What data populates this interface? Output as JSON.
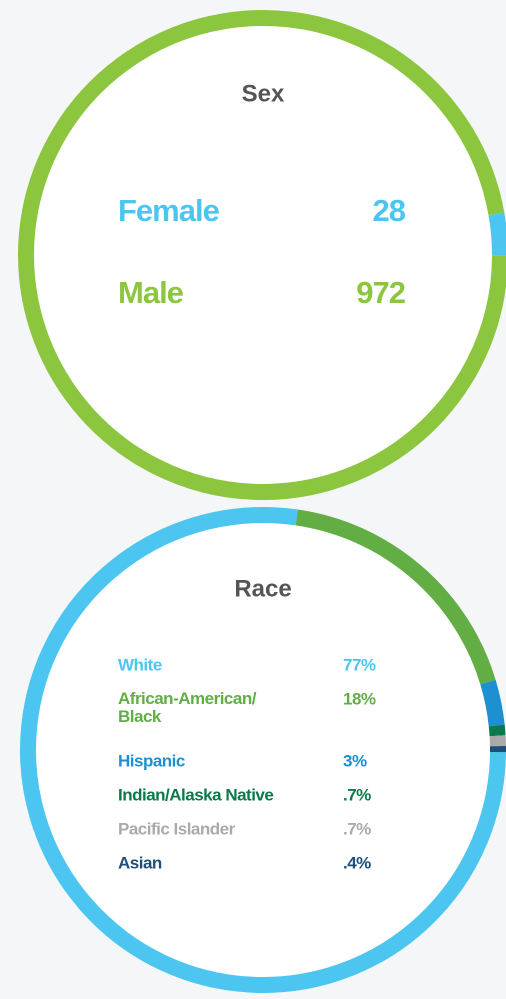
{
  "chart_data": [
    {
      "type": "donut",
      "title": "Sex",
      "categories": [
        "Female",
        "Male"
      ],
      "values": [
        28,
        972
      ],
      "colors": [
        "#4cc6f0",
        "#8cc63f"
      ]
    },
    {
      "type": "donut",
      "title": "Race",
      "categories": [
        "White",
        "African-American/\nBlack",
        "Hispanic",
        "Indian/Alaska Native",
        "Pacific Islander",
        "Asian"
      ],
      "values": [
        77,
        18,
        3,
        0.7,
        0.7,
        0.4
      ],
      "value_labels": [
        "77%",
        "18%",
        "3%",
        ".7%",
        ".7%",
        ".4%"
      ],
      "colors": [
        "#4cc6f0",
        "#62ae45",
        "#1e8fd0",
        "#0a7a4a",
        "#aaaaaa",
        "#1d4f7c"
      ]
    }
  ]
}
